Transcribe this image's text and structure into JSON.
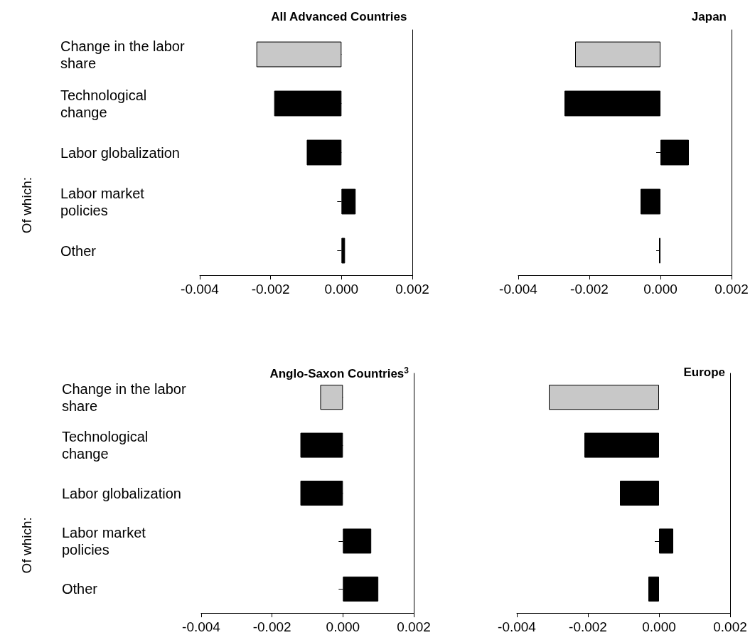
{
  "chart_data": [
    {
      "type": "bar",
      "orientation": "horizontal",
      "title": "All Advanced Countries",
      "ylabel": "Of which:",
      "categories": [
        "Change in the labor share",
        "Technological change",
        "Labor globalization",
        "Labor market policies",
        "Other"
      ],
      "values": [
        -0.0024,
        -0.0019,
        -0.00098,
        0.0004,
        0.0001
      ],
      "colors": [
        "#c8c8c8",
        "#000000",
        "#000000",
        "#000000",
        "#000000"
      ],
      "xlim": [
        -0.004,
        0.002
      ],
      "xticks": [
        {
          "value": -0.004,
          "label": "-0.004"
        },
        {
          "value": -0.002,
          "label": "-0.002"
        },
        {
          "value": 0,
          "label": "0.000"
        },
        {
          "value": 0.002,
          "label": "0.002"
        }
      ],
      "grid": false
    },
    {
      "type": "bar",
      "orientation": "horizontal",
      "title": "Japan",
      "categories": [
        "Change in the labor share",
        "Technological change",
        "Labor globalization",
        "Labor market policies",
        "Other"
      ],
      "values": [
        -0.0024,
        -0.0027,
        0.0008,
        -0.00056,
        -4e-05
      ],
      "colors": [
        "#c8c8c8",
        "#000000",
        "#000000",
        "#000000",
        "#000000"
      ],
      "xlim": [
        -0.004,
        0.002
      ],
      "xticks": [
        {
          "value": -0.004,
          "label": "-0.004"
        },
        {
          "value": -0.002,
          "label": "-0.002"
        },
        {
          "value": 0,
          "label": "0.000"
        },
        {
          "value": 0.002,
          "label": "0.002"
        }
      ],
      "grid": false,
      "tick_labels": "x"
    },
    {
      "type": "bar",
      "orientation": "horizontal",
      "title": "Anglo-Saxon Countries$^{3}$",
      "ylabel": "Of which:",
      "categories": [
        "Change in the labor share",
        "Technological change",
        "Labor globalization",
        "Labor market policies",
        "Other"
      ],
      "values": [
        -0.00064,
        -0.0012,
        -0.0012,
        0.0008,
        0.001
      ],
      "colors": [
        "#c8c8c8",
        "#000000",
        "#000000",
        "#000000",
        "#000000"
      ],
      "xlim": [
        -0.004,
        0.002
      ],
      "xticks": [
        {
          "value": -0.004,
          "label": "-0.004"
        },
        {
          "value": -0.002,
          "label": "-0.002"
        },
        {
          "value": 0,
          "label": "0.000"
        },
        {
          "value": 0.002,
          "label": "0.002"
        }
      ],
      "grid": false
    },
    {
      "type": "bar",
      "orientation": "horizontal",
      "title": "Europe",
      "categories": [
        "Change in the labor share",
        "Technological change",
        "Labor globalization",
        "Labor market policies",
        "Other"
      ],
      "values": [
        -0.0031,
        -0.0021,
        -0.0011,
        0.0004,
        -0.0003
      ],
      "colors": [
        "#c8c8c8",
        "#000000",
        "#000000",
        "#000000",
        "#000000"
      ],
      "xlim": [
        -0.004,
        0.002
      ],
      "xticks": [
        {
          "value": -0.004,
          "label": "-0.004"
        },
        {
          "value": -0.002,
          "label": "-0.002"
        },
        {
          "value": 0,
          "label": "0.000"
        },
        {
          "value": 0.002,
          "label": "0.002"
        }
      ],
      "grid": false,
      "tick_labels": "x"
    }
  ]
}
